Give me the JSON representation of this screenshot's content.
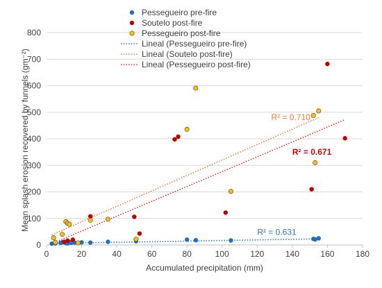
{
  "chart_data": {
    "type": "scatter",
    "xlabel": "Accumulated precipitation (mm)",
    "ylabel": "Mean splash erosion recovered by funnels (gm⁻²)",
    "xlim": [
      0,
      180
    ],
    "ylim": [
      0,
      800
    ],
    "x_ticks": [
      "0",
      "20",
      "40",
      "60",
      "80",
      "100",
      "120",
      "140",
      "160",
      "180"
    ],
    "y_ticks": [
      "0",
      "100",
      "200",
      "300",
      "400",
      "500",
      "600",
      "700",
      "800"
    ],
    "grid": "horizontal",
    "legend_position": "top-left",
    "series": [
      {
        "name": "Pessegueiro pre-fire",
        "color": "#1f6fc4",
        "marker": "circle",
        "points": [
          [
            3,
            5
          ],
          [
            5,
            6
          ],
          [
            8,
            8
          ],
          [
            9,
            10
          ],
          [
            11,
            7
          ],
          [
            12,
            6
          ],
          [
            13,
            12
          ],
          [
            14,
            8
          ],
          [
            16,
            9
          ],
          [
            20,
            10
          ],
          [
            25,
            9
          ],
          [
            35,
            12
          ],
          [
            51,
            14
          ],
          [
            80,
            20
          ],
          [
            85,
            18
          ],
          [
            105,
            17
          ],
          [
            152,
            23
          ],
          [
            153,
            21
          ],
          [
            155,
            25
          ]
        ]
      },
      {
        "name": "Soutelo post-fire",
        "color": "#c00000",
        "marker": "circle",
        "points": [
          [
            10,
            12
          ],
          [
            12,
            16
          ],
          [
            15,
            20
          ],
          [
            25,
            108
          ],
          [
            50,
            106
          ],
          [
            53,
            43
          ],
          [
            73,
            398
          ],
          [
            75,
            408
          ],
          [
            102,
            122
          ],
          [
            151,
            210
          ],
          [
            160,
            682
          ],
          [
            170,
            402
          ]
        ]
      },
      {
        "name": "Pessegueiro post-fire",
        "color": "#ffc000",
        "marker": "circle",
        "points": [
          [
            4,
            27
          ],
          [
            5,
            10
          ],
          [
            9,
            40
          ],
          [
            11,
            88
          ],
          [
            12,
            82
          ],
          [
            13,
            78
          ],
          [
            18,
            8
          ],
          [
            25,
            93
          ],
          [
            35,
            97
          ],
          [
            51,
            22
          ],
          [
            80,
            436
          ],
          [
            85,
            591
          ],
          [
            105,
            202
          ],
          [
            152,
            488
          ],
          [
            153,
            310
          ],
          [
            155,
            505
          ]
        ]
      }
    ],
    "trendlines": [
      {
        "name": "Lineal (Pessegueiro pre-fire)",
        "color": "#2e75b6",
        "x": [
          3,
          155
        ],
        "y": [
          6,
          23
        ],
        "r2_label": "R² = 0.631",
        "r2_color": "#2e75b6"
      },
      {
        "name": "Lineal (Soutelo post-fire)",
        "color": "#ed7d31",
        "x": [
          3,
          155
        ],
        "y": [
          38,
          480
        ],
        "r2_label": "R² = 0.710",
        "r2_color": "#ed7d31"
      },
      {
        "name": "Lineal (Pessegueiro post-fire)",
        "color": "#e03020",
        "x": [
          3,
          170
        ],
        "y": [
          5,
          472
        ],
        "r2_label": "R² = 0.671",
        "r2_color": "#e00000"
      }
    ],
    "r2_labels": [
      {
        "text": "R² = 0.710",
        "x": 128,
        "y": 470,
        "color": "#ed7d31",
        "bold": false
      },
      {
        "text": "R² = 0.671",
        "x": 140,
        "y": 340,
        "color": "#e00000",
        "bold": true
      },
      {
        "text": "R² = 0.631",
        "x": 120,
        "y": 38,
        "color": "#2e75b6",
        "bold": false
      }
    ]
  }
}
